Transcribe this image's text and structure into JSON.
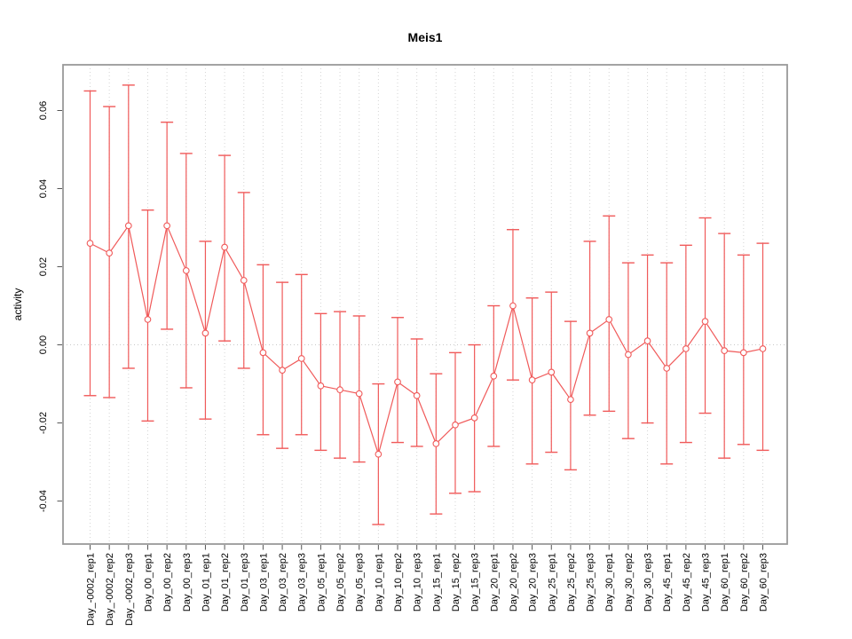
{
  "figure": {
    "background": "#ffffff"
  },
  "chart_data": {
    "type": "line",
    "title": "Meis1",
    "xlabel": "",
    "ylabel": "activity",
    "legend": "none",
    "grid": "vertical dotted gridline at every category; dotted horizontal line at y=0",
    "marker": "open-circle",
    "error_bars": true,
    "ylim": [
      -0.051,
      0.0717
    ],
    "yticks": [
      0.06,
      0.04,
      0.02,
      0.0,
      -0.02,
      -0.04
    ],
    "ytick_labels": [
      "0.06",
      "0.04",
      "0.02",
      "0.00",
      "-0.02",
      "-0.04"
    ],
    "categories": [
      "Day_-0002_rep1",
      "Day_-0002_rep2",
      "Day_-0002_rep3",
      "Day_00_rep1",
      "Day_00_rep2",
      "Day_00_rep3",
      "Day_01_rep1",
      "Day_01_rep2",
      "Day_01_rep3",
      "Day_03_rep1",
      "Day_03_rep2",
      "Day_03_rep3",
      "Day_05_rep1",
      "Day_05_rep2",
      "Day_05_rep3",
      "Day_10_rep1",
      "Day_10_rep2",
      "Day_10_rep3",
      "Day_15_rep1",
      "Day_15_rep2",
      "Day_15_rep3",
      "Day_20_rep1",
      "Day_20_rep2",
      "Day_20_rep3",
      "Day_25_rep1",
      "Day_25_rep2",
      "Day_25_rep3",
      "Day_30_rep1",
      "Day_30_rep2",
      "Day_30_rep3",
      "Day_45_rep1",
      "Day_45_rep2",
      "Day_45_rep3",
      "Day_60_rep1",
      "Day_60_rep2",
      "Day_60_rep3"
    ],
    "series": [
      {
        "name": "activity",
        "values": [
          0.026,
          0.0235,
          0.0305,
          0.0065,
          0.0305,
          0.019,
          0.003,
          0.025,
          0.0165,
          -0.002,
          -0.0065,
          -0.0035,
          -0.0105,
          -0.0115,
          -0.0125,
          -0.028,
          -0.0095,
          -0.013,
          -0.0253,
          -0.0205,
          -0.0187,
          -0.008,
          0.01,
          -0.009,
          -0.007,
          -0.014,
          0.003,
          0.0065,
          -0.0025,
          0.001,
          -0.006,
          -0.001,
          0.006,
          -0.0015,
          -0.002,
          -0.001
        ],
        "error_low": [
          -0.013,
          -0.0135,
          -0.006,
          -0.0195,
          0.004,
          -0.011,
          -0.019,
          0.001,
          -0.006,
          -0.023,
          -0.0265,
          -0.023,
          -0.027,
          -0.029,
          -0.03,
          -0.046,
          -0.025,
          -0.026,
          -0.0433,
          -0.038,
          -0.0376,
          -0.026,
          -0.009,
          -0.0305,
          -0.0275,
          -0.032,
          -0.018,
          -0.017,
          -0.024,
          -0.02,
          -0.0305,
          -0.025,
          -0.0175,
          -0.029,
          -0.0255,
          -0.027
        ],
        "error_high": [
          0.065,
          0.061,
          0.0665,
          0.0345,
          0.057,
          0.049,
          0.0265,
          0.0485,
          0.039,
          0.0205,
          0.016,
          0.018,
          0.008,
          0.0085,
          0.0074,
          -0.01,
          0.007,
          0.0015,
          -0.0074,
          -0.002,
          0.0,
          0.01,
          0.0295,
          0.012,
          0.0135,
          0.006,
          0.0265,
          0.033,
          0.021,
          0.023,
          0.021,
          0.0255,
          0.0325,
          0.0285,
          0.023,
          0.026
        ]
      }
    ],
    "colors": {
      "series": "#f05a5a",
      "grid": "#d4d4d4",
      "zero_line": "#c8c8c8",
      "frame": "#999999",
      "tick": "#555555",
      "text": "#000000",
      "background": "#ffffff"
    }
  }
}
